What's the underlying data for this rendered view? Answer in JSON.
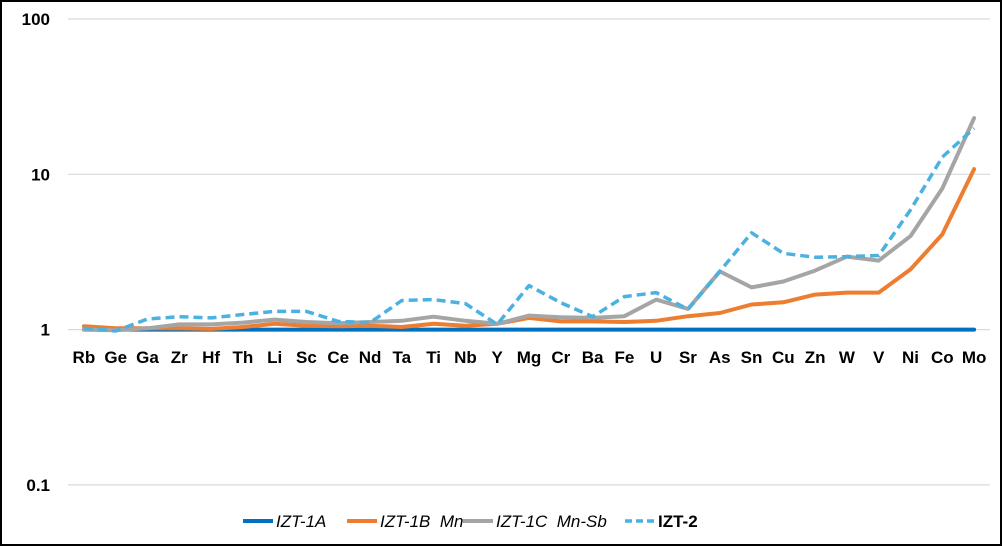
{
  "chart_data": {
    "type": "line",
    "title": "",
    "xlabel": "",
    "ylabel": "",
    "yscale": "log",
    "ylim": [
      0.1,
      100
    ],
    "yticks": [
      "100",
      "10",
      "1",
      "0.1"
    ],
    "grid": true,
    "legend_position": "bottom",
    "categories": [
      "Rb",
      "Ge",
      "Ga",
      "Zr",
      "Hf",
      "Th",
      "Li",
      "Sc",
      "Ce",
      "Nd",
      "Ta",
      "Ti",
      "Nb",
      "Y",
      "Mg",
      "Cr",
      "Ba",
      "Fe",
      "U",
      "Sr",
      "As",
      "Sn",
      "Cu",
      "Zn",
      "W",
      "V",
      "Ni",
      "Co",
      "Mo"
    ],
    "series": [
      {
        "name": "IZT-1A",
        "color": "#0070C0",
        "dash": "solid",
        "label_style": "italic",
        "values": [
          1,
          1,
          1,
          1,
          1,
          1,
          1,
          1,
          1,
          1,
          1,
          1,
          1,
          1,
          1,
          1,
          1,
          1,
          1,
          1,
          1,
          1,
          1,
          1,
          1,
          1,
          1,
          1,
          1
        ]
      },
      {
        "name": "IZT-1B  Mn",
        "color": "#ED7D31",
        "dash": "solid",
        "label_style": "italic",
        "values": [
          1.05,
          1.02,
          1.02,
          1.02,
          1.01,
          1.04,
          1.09,
          1.06,
          1.05,
          1.06,
          1.04,
          1.09,
          1.06,
          1.09,
          1.19,
          1.13,
          1.13,
          1.12,
          1.14,
          1.22,
          1.28,
          1.45,
          1.5,
          1.68,
          1.73,
          1.73,
          2.44,
          4.1,
          10.8
        ]
      },
      {
        "name": "IZT-1C  Mn-Sb",
        "color": "#A5A5A5",
        "dash": "solid",
        "label_style": "italic",
        "values": [
          1.0,
          0.99,
          1.02,
          1.08,
          1.08,
          1.11,
          1.16,
          1.12,
          1.1,
          1.12,
          1.14,
          1.21,
          1.14,
          1.09,
          1.23,
          1.2,
          1.19,
          1.22,
          1.56,
          1.36,
          2.37,
          1.87,
          2.04,
          2.4,
          2.95,
          2.78,
          4.0,
          8.1,
          23.0
        ]
      },
      {
        "name": "IZT-2",
        "color": "#4BB1E1",
        "dash": "dashed",
        "label_style": "bold",
        "values": [
          1.02,
          0.98,
          1.17,
          1.21,
          1.19,
          1.25,
          1.31,
          1.31,
          1.13,
          1.11,
          1.54,
          1.56,
          1.47,
          1.08,
          1.92,
          1.49,
          1.21,
          1.63,
          1.73,
          1.35,
          2.37,
          4.2,
          3.1,
          2.92,
          2.95,
          3.0,
          5.9,
          12.9,
          19.8
        ]
      }
    ]
  }
}
